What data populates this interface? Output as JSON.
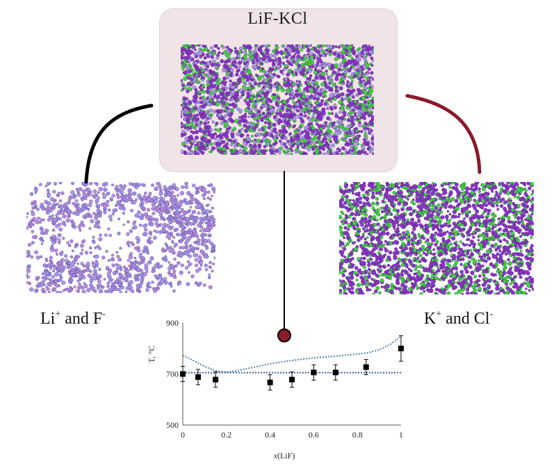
{
  "top_panel": {
    "title": "LiF-KCl"
  },
  "left_panel": {
    "label_main": "Li",
    "label_sup1": "+",
    "label_mid": " and F",
    "label_sup2": "-"
  },
  "right_panel": {
    "label_main": "K",
    "label_sup1": "+",
    "label_mid": " and Cl",
    "label_sup2": "-"
  },
  "colors": {
    "box_fill": "#f1e4e6",
    "atom_purple": "#8a35c9",
    "atom_green": "#3cd63c",
    "atom_lavender": "#a898e6",
    "connector_left": "#000000",
    "connector_right": "#8b1a2b",
    "marker_fill": "#8b1a2b",
    "curve_color": "#4a7fb5"
  },
  "chart_data": {
    "type": "scatter",
    "xlabel_italic": "x",
    "xlabel_rest": "(LiF)",
    "ylabel": "T, °C",
    "xlim": [
      0,
      1
    ],
    "ylim": [
      500,
      900
    ],
    "x_ticks": [
      "0",
      "0.2",
      "0.4",
      "0.6",
      "0.8",
      "1"
    ],
    "y_ticks": [
      "500",
      "700",
      "900"
    ],
    "points": [
      {
        "x": 0.0,
        "y": 700,
        "err": 30
      },
      {
        "x": 0.07,
        "y": 688,
        "err": 30
      },
      {
        "x": 0.15,
        "y": 678,
        "err": 30
      },
      {
        "x": 0.4,
        "y": 667,
        "err": 30
      },
      {
        "x": 0.5,
        "y": 678,
        "err": 30
      },
      {
        "x": 0.6,
        "y": 706,
        "err": 30
      },
      {
        "x": 0.7,
        "y": 706,
        "err": 30
      },
      {
        "x": 0.84,
        "y": 727,
        "err": 30
      },
      {
        "x": 1.0,
        "y": 800,
        "err": 50
      }
    ],
    "liquidus": [
      [
        0,
        773
      ],
      [
        0.05,
        752
      ],
      [
        0.1,
        730
      ],
      [
        0.15,
        712
      ],
      [
        0.2,
        707
      ],
      [
        0.25,
        713
      ],
      [
        0.3,
        722
      ],
      [
        0.4,
        740
      ],
      [
        0.5,
        753
      ],
      [
        0.6,
        763
      ],
      [
        0.7,
        770
      ],
      [
        0.8,
        778
      ],
      [
        0.85,
        783
      ],
      [
        0.9,
        795
      ],
      [
        0.95,
        815
      ],
      [
        1,
        848
      ]
    ],
    "eutectic_y": 705
  }
}
